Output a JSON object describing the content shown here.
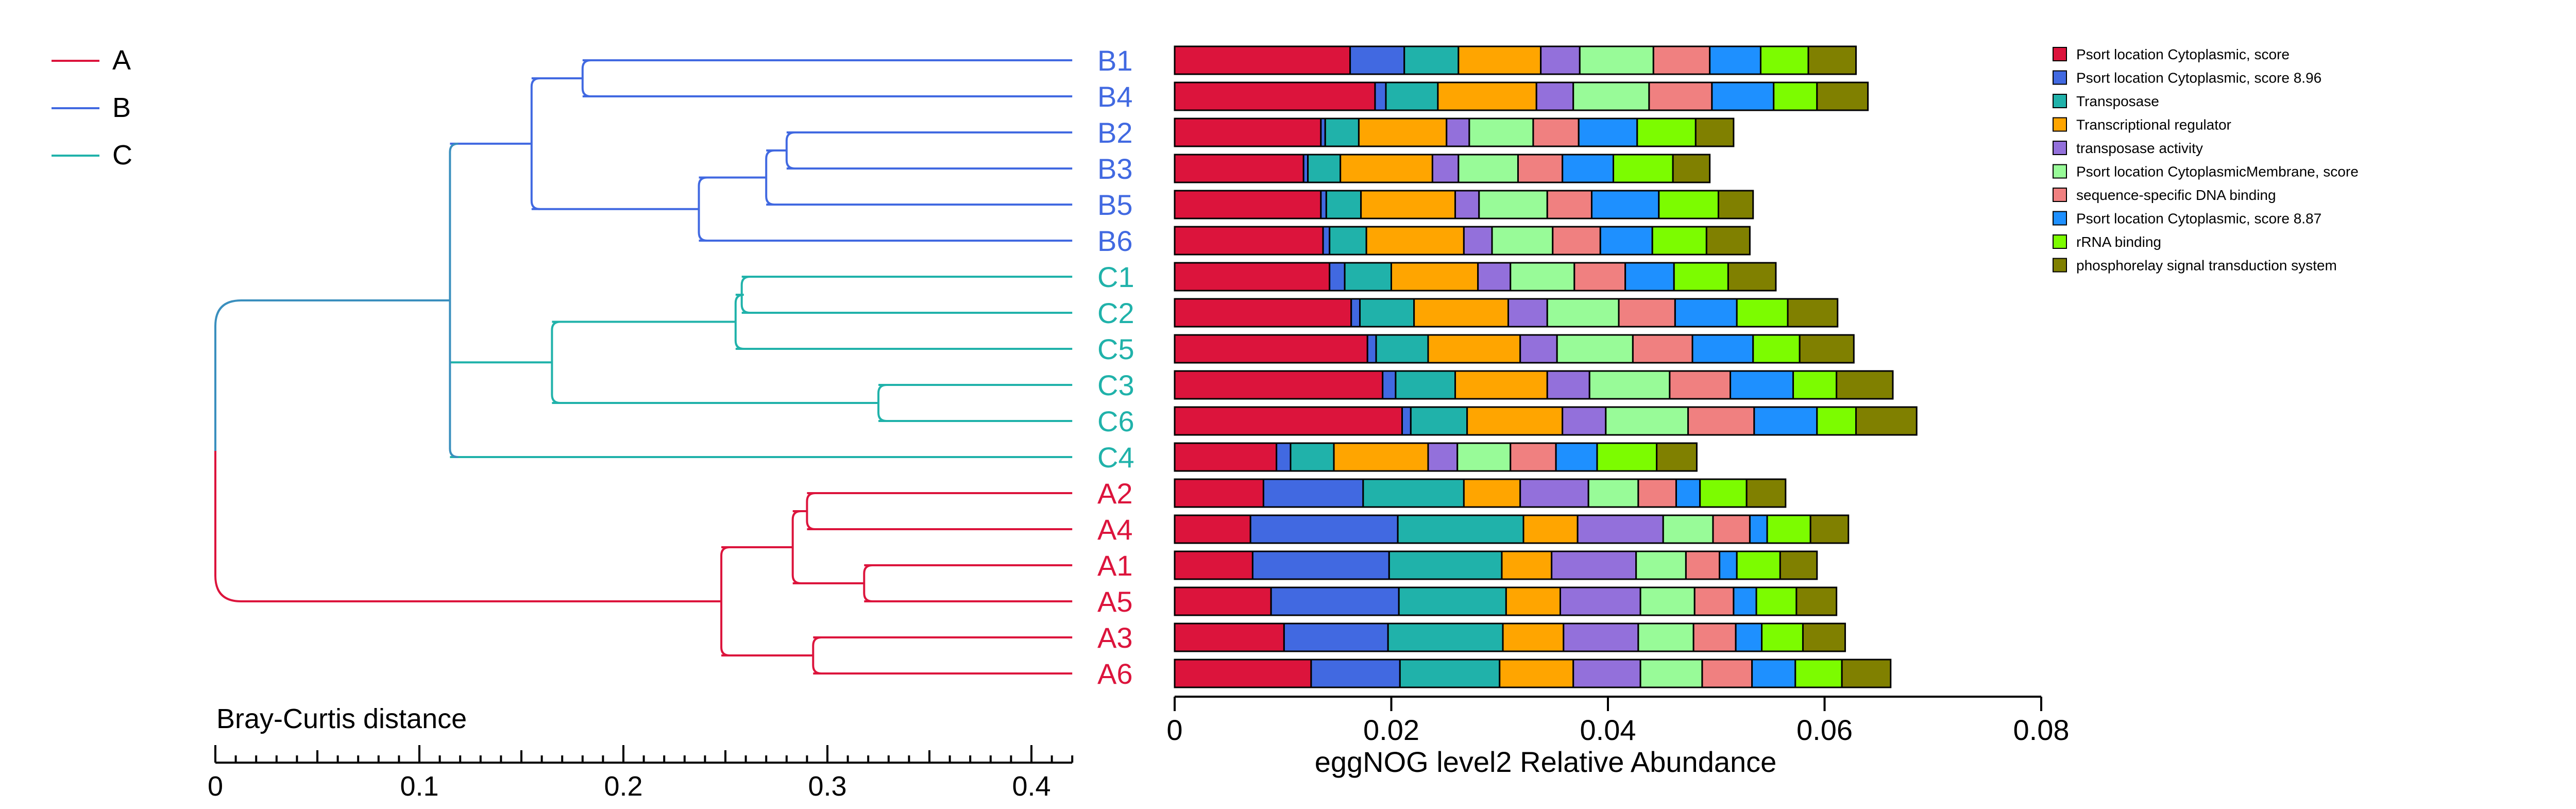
{
  "chart_data": [
    {
      "type": "dendrogram",
      "metric_label": "Bray-Curtis distance",
      "axis": {
        "range": [
          0,
          0.42
        ],
        "ticks": [
          0,
          0.1,
          0.2,
          0.3,
          0.4
        ],
        "tick_labels": [
          "0",
          "0.1",
          "0.2",
          "0.3",
          "0.4"
        ]
      },
      "groups": [
        {
          "name": "A",
          "color": "#dc143c"
        },
        {
          "name": "B",
          "color": "#4169e1"
        },
        {
          "name": "C",
          "color": "#20b2aa"
        }
      ],
      "root_color": "#3a8fbe",
      "leaves": [
        "B1",
        "B4",
        "B2",
        "B3",
        "B5",
        "B6",
        "C1",
        "C2",
        "C5",
        "C3",
        "C6",
        "C4",
        "A2",
        "A4",
        "A1",
        "A5",
        "A3",
        "A6"
      ],
      "leaf_group": [
        "B",
        "B",
        "B",
        "B",
        "B",
        "B",
        "C",
        "C",
        "C",
        "C",
        "C",
        "C",
        "A",
        "A",
        "A",
        "A",
        "A",
        "A"
      ],
      "tree": {
        "h": 0.0,
        "g": "root",
        "c": [
          {
            "h": 0.115,
            "g": "BC",
            "c": [
              {
                "h": 0.155,
                "g": "B",
                "c": [
                  {
                    "h": 0.18,
                    "g": "B",
                    "c": [
                      "B1",
                      "B4"
                    ]
                  },
                  {
                    "h": 0.237,
                    "g": "B",
                    "c": [
                      {
                        "h": 0.27,
                        "g": "B",
                        "c": [
                          {
                            "h": 0.28,
                            "g": "B",
                            "c": [
                              "B2",
                              "B3"
                            ]
                          },
                          "B5"
                        ]
                      },
                      "B6"
                    ]
                  }
                ]
              },
              {
                "h": 0.165,
                "g": "C",
                "c": [
                  {
                    "h": 0.255,
                    "g": "C",
                    "c": [
                      {
                        "h": 0.258,
                        "g": "C",
                        "c": [
                          "C1",
                          "C2"
                        ]
                      },
                      "C5"
                    ]
                  },
                  {
                    "h": 0.325,
                    "g": "C",
                    "c": [
                      "C3",
                      "C6"
                    ]
                  }
                ]
              },
              "C4"
            ]
          },
          {
            "h": 0.248,
            "g": "A",
            "c": [
              {
                "h": 0.283,
                "g": "A",
                "c": [
                  {
                    "h": 0.29,
                    "g": "A",
                    "c": [
                      "A2",
                      "A4"
                    ]
                  },
                  {
                    "h": 0.318,
                    "g": "A",
                    "c": [
                      "A1",
                      "A5"
                    ]
                  }
                ]
              },
              {
                "h": 0.293,
                "g": "A",
                "c": [
                  "A3",
                  "A6"
                ]
              }
            ]
          }
        ]
      }
    },
    {
      "type": "bar",
      "orientation": "horizontal",
      "stacked": true,
      "xlabel": "eggNOG level2 Relative Abundance",
      "xlim": [
        0,
        0.08
      ],
      "xticks": [
        "0",
        "0.02",
        "0.04",
        "0.06",
        "0.08"
      ],
      "legend_position": "top-right",
      "categories": [
        "B1",
        "B4",
        "B2",
        "B3",
        "B5",
        "B6",
        "C1",
        "C2",
        "C5",
        "C3",
        "C6",
        "C4",
        "A2",
        "A4",
        "A1",
        "A5",
        "A3",
        "A6"
      ],
      "series": [
        {
          "name": "Psort location Cytoplasmic, score",
          "color": "#dc143c",
          "values": [
            0.0162,
            0.0185,
            0.0135,
            0.0119,
            0.0135,
            0.0137,
            0.0143,
            0.0163,
            0.0178,
            0.0192,
            0.021,
            0.0094,
            0.0082,
            0.007,
            0.0072,
            0.0089,
            0.0101,
            0.0126
          ]
        },
        {
          "name": "Psort location Cytoplasmic, score 8.96",
          "color": "#4169e1",
          "values": [
            0.005,
            0.001,
            0.0004,
            0.0004,
            0.0005,
            0.0006,
            0.0014,
            0.0008,
            0.0008,
            0.0012,
            0.0008,
            0.0013,
            0.0092,
            0.0136,
            0.0126,
            0.0118,
            0.0096,
            0.0082
          ]
        },
        {
          "name": "Transposase",
          "color": "#20b2aa",
          "values": [
            0.005,
            0.0048,
            0.0031,
            0.003,
            0.0032,
            0.0034,
            0.0043,
            0.005,
            0.0048,
            0.0055,
            0.0052,
            0.004,
            0.0093,
            0.0116,
            0.0104,
            0.0099,
            0.0106,
            0.0092
          ]
        },
        {
          "name": "Transcriptional regulator",
          "color": "#ffa500",
          "values": [
            0.0076,
            0.0091,
            0.0081,
            0.0085,
            0.0087,
            0.009,
            0.008,
            0.0087,
            0.0085,
            0.0085,
            0.0088,
            0.0087,
            0.0052,
            0.005,
            0.0046,
            0.005,
            0.0056,
            0.0068
          ]
        },
        {
          "name": "transposase activity",
          "color": "#9370db",
          "values": [
            0.0036,
            0.0034,
            0.0021,
            0.0024,
            0.0022,
            0.0026,
            0.003,
            0.0036,
            0.0034,
            0.0039,
            0.004,
            0.0027,
            0.0063,
            0.0079,
            0.0078,
            0.0074,
            0.0069,
            0.0062
          ]
        },
        {
          "name": "Psort location CytoplasmicMembrane, score",
          "color": "#98fb98",
          "values": [
            0.0068,
            0.007,
            0.0059,
            0.0055,
            0.0063,
            0.0056,
            0.0059,
            0.0066,
            0.007,
            0.0074,
            0.0076,
            0.0049,
            0.0046,
            0.0046,
            0.0046,
            0.005,
            0.0051,
            0.0057
          ]
        },
        {
          "name": "sequence-specific DNA binding",
          "color": "#f08080",
          "values": [
            0.0052,
            0.0058,
            0.0042,
            0.0041,
            0.0041,
            0.0044,
            0.0047,
            0.0052,
            0.0055,
            0.0056,
            0.0061,
            0.0042,
            0.0035,
            0.0034,
            0.0031,
            0.0036,
            0.0039,
            0.0046
          ]
        },
        {
          "name": "Psort location Cytoplasmic, score 8.87",
          "color": "#1e90ff",
          "values": [
            0.0047,
            0.0057,
            0.0054,
            0.0047,
            0.0062,
            0.0048,
            0.0045,
            0.0057,
            0.0056,
            0.0058,
            0.0058,
            0.0038,
            0.0022,
            0.0016,
            0.0016,
            0.0021,
            0.0024,
            0.004
          ]
        },
        {
          "name": "rRNA binding",
          "color": "#7cfc00",
          "values": [
            0.0044,
            0.004,
            0.0054,
            0.0055,
            0.0055,
            0.005,
            0.005,
            0.0047,
            0.0043,
            0.004,
            0.0036,
            0.0055,
            0.0043,
            0.004,
            0.004,
            0.0037,
            0.0038,
            0.0043
          ]
        },
        {
          "name": "phosphorelay signal transduction system",
          "color": "#808000",
          "values": [
            0.0044,
            0.0047,
            0.0035,
            0.0034,
            0.0032,
            0.004,
            0.0044,
            0.0046,
            0.005,
            0.0052,
            0.0056,
            0.0037,
            0.0036,
            0.0035,
            0.0034,
            0.0037,
            0.0039,
            0.0045
          ]
        }
      ]
    }
  ]
}
